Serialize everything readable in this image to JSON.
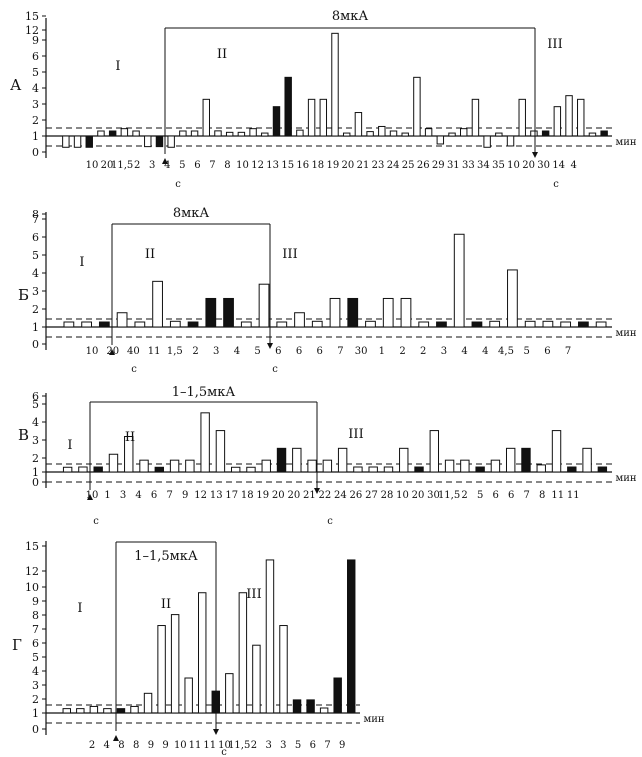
{
  "chart_data": [
    {
      "type": "bar",
      "panel_letter": "А",
      "bracket_label": "8мкА",
      "phase_labels": [
        "I",
        "II",
        "III"
      ],
      "y_ticks": [
        "0",
        "1",
        "2",
        "3",
        "4",
        "5",
        "6",
        "9",
        "12",
        "15"
      ],
      "unit": "мин",
      "stim_on_index": 12,
      "stim_off_index": 45,
      "x_labels": [
        "10",
        "20",
        "11,5",
        "2",
        "3",
        "4",
        "5",
        "6",
        "7",
        "8",
        "10",
        "12",
        "13",
        "15",
        "16",
        "18",
        "19",
        "20",
        "21",
        "23",
        "24",
        "25",
        "26",
        "29",
        "31",
        "33",
        "34",
        "35",
        "10",
        "20",
        "30",
        "14",
        "4"
      ],
      "sec_labels": [
        "с",
        "с"
      ],
      "values": [
        -0.8,
        -0.8,
        -0.8,
        1.0,
        1.1,
        2.0,
        1.0,
        -0.7,
        -0.7,
        -0.8,
        1.0,
        1.1,
        6.0,
        1.7,
        1.5,
        1.5,
        2.0,
        1.4,
        5.0,
        9.0,
        1.8,
        6.0,
        6.0,
        15.0,
        1.4,
        4.2,
        1.6,
        2.3,
        1.0,
        1.4,
        9.0,
        2.0,
        -0.3,
        1.4,
        2.0,
        6.0,
        -0.8,
        1.4,
        -0.6,
        6.0,
        0.9,
        0.9,
        5.0,
        6.5,
        6.0,
        1.4,
        1.0
      ],
      "filled": [
        false,
        false,
        true,
        false,
        true,
        false,
        false,
        false,
        true,
        false,
        false,
        false,
        false,
        false,
        false,
        false,
        false,
        false,
        true,
        true,
        false,
        false,
        false,
        false,
        false,
        false,
        false,
        false,
        false,
        false,
        false,
        false,
        false,
        false,
        false,
        false,
        false,
        false,
        false,
        false,
        false,
        true,
        false,
        false,
        false,
        false,
        true
      ]
    },
    {
      "type": "bar",
      "panel_letter": "Б",
      "bracket_label": "8мкА",
      "phase_labels": [
        "I",
        "II",
        "III"
      ],
      "y_ticks": [
        "0",
        "1",
        "2",
        "3",
        "4",
        "5",
        "6",
        "7",
        "8"
      ],
      "unit": "мин",
      "stim_on_index": 7,
      "stim_off_index": 23,
      "x_labels": [
        "10",
        "20",
        "40",
        "11",
        "1,5",
        "2",
        "3",
        "4",
        "5",
        "6",
        "6",
        "6",
        "7",
        "30",
        "1",
        "2",
        "2",
        "3",
        "4",
        "4",
        "4,5",
        "5",
        "6",
        "7"
      ],
      "sec_labels": [
        "с",
        "с"
      ],
      "values": [
        1.1,
        1.0,
        1.0,
        2.0,
        1.0,
        4.2,
        1.4,
        0.8,
        3.0,
        3.0,
        1.0,
        4.0,
        1.0,
        2.0,
        1.4,
        3.0,
        3.0,
        1.4,
        3.0,
        3.0,
        1.1,
        1.0,
        7.5,
        1.0,
        1.4,
        5.0,
        1.4,
        1.4,
        0.8,
        0.8,
        1.0
      ],
      "filled": [
        false,
        false,
        true,
        false,
        false,
        false,
        false,
        true,
        true,
        true,
        false,
        false,
        false,
        false,
        false,
        false,
        true,
        false,
        false,
        false,
        false,
        true,
        false,
        true,
        false,
        false,
        false,
        false,
        false,
        true,
        false
      ]
    },
    {
      "type": "bar",
      "panel_letter": "В",
      "bracket_label": "1–1,5мкА",
      "phase_labels": [
        "I",
        "II",
        "III"
      ],
      "y_ticks": [
        "0",
        "1",
        "2",
        "3",
        "4",
        "5",
        "6"
      ],
      "unit": "мин",
      "stim_on_index": 4,
      "stim_off_index": 27,
      "x_labels": [
        "10",
        "1",
        "3",
        "4",
        "6",
        "7",
        "9",
        "12",
        "13",
        "17",
        "18",
        "19",
        "20",
        "20",
        "21",
        "22",
        "24",
        "26",
        "27",
        "28",
        "10",
        "20",
        "30",
        "11,5",
        "2",
        "5",
        "6",
        "6",
        "7",
        "8",
        "11",
        "11"
      ],
      "sec_labels": [
        "с",
        "с"
      ],
      "values": [
        1.4,
        1.1,
        1.0,
        2.5,
        4.0,
        2.0,
        1.4,
        2.0,
        2.0,
        6.0,
        4.5,
        1.4,
        1.4,
        2.0,
        3.0,
        3.0,
        2.0,
        2.0,
        3.0,
        1.0,
        1.0,
        1.0,
        3.0,
        1.0,
        4.5,
        2.0,
        2.0,
        1.0,
        2.0,
        3.0,
        3.0,
        1.6,
        4.5,
        0.0,
        3.0,
        1.0
      ],
      "filled": [
        false,
        false,
        true,
        false,
        false,
        false,
        true,
        false,
        false,
        false,
        false,
        false,
        false,
        false,
        true,
        false,
        false,
        false,
        false,
        false,
        false,
        false,
        false,
        true,
        false,
        false,
        false,
        true,
        false,
        false,
        true,
        false,
        false,
        true,
        false,
        true
      ]
    },
    {
      "type": "bar",
      "panel_letter": "Г",
      "bracket_label": "1–1,5мкА",
      "phase_labels": [
        "I",
        "II",
        "III"
      ],
      "y_ticks": [
        "0",
        "1",
        "2",
        "3",
        "4",
        "5",
        "6",
        "7",
        "8",
        "9",
        "10",
        "12",
        "15"
      ],
      "unit": "мин",
      "stim_on_index": 5,
      "stim_off_index": 17,
      "x_labels": [
        "2",
        "4",
        "8",
        "8",
        "9",
        "9",
        "10",
        "11",
        "11",
        "10",
        "11,5",
        "2",
        "3",
        "3",
        "5",
        "6",
        "7",
        "9"
      ],
      "sec_labels": [
        "с"
      ],
      "values": [
        1.4,
        1.4,
        1.6,
        1.4,
        1.4,
        1.6,
        2.8,
        9.0,
        10.0,
        4.2,
        12.0,
        3.0,
        4.6,
        12.0,
        7.2,
        15.0,
        9.0,
        2.2,
        2.2,
        0.8,
        4.2,
        15.0
      ],
      "filled": [
        false,
        false,
        false,
        false,
        true,
        false,
        false,
        false,
        false,
        false,
        false,
        true,
        false,
        false,
        false,
        false,
        false,
        true,
        true,
        false,
        true,
        true
      ]
    }
  ]
}
